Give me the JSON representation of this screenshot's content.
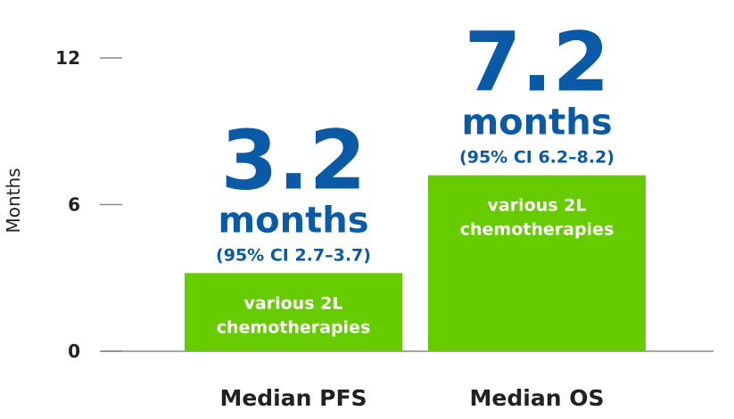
{
  "chart_data": {
    "type": "bar",
    "y_label": "Months",
    "categories": [
      "Median PFS",
      "Median OS"
    ],
    "values": [
      3.2,
      7.2
    ],
    "color": "#66cc00",
    "label_color": "#0a5aa8",
    "annotations": [
      {
        "unit": "months",
        "ci": "(95% CI 2.7–3.7)",
        "note": [
          "various 2L",
          "chemotherapies"
        ]
      },
      {
        "unit": "months",
        "ci": "(95% CI 6.2–8.2)",
        "note": [
          "various 2L",
          "chemotherapies"
        ]
      }
    ],
    "ylim": [
      0,
      12
    ],
    "yticks": [
      0,
      6,
      12
    ],
    "grid": false
  }
}
